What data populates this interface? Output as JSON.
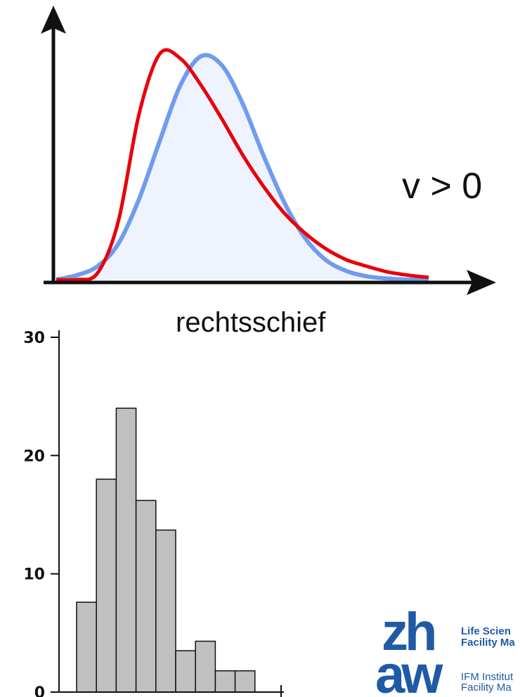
{
  "chart_data": [
    {
      "type": "line",
      "title": "",
      "annotation": "v > 0",
      "caption": "rechtsschief",
      "xlabel": "",
      "ylabel": "",
      "xlim": [
        0,
        10
      ],
      "ylim": [
        0,
        1.1
      ],
      "grid": false,
      "series": [
        {
          "color": "#6f9cf0",
          "fill": "#eef3fd",
          "x": [
            0,
            0.5,
            1,
            1.5,
            2,
            2.5,
            3,
            3.5,
            4,
            4.5,
            5,
            5.5,
            6,
            6.5,
            7,
            7.5,
            8,
            8.5,
            9
          ],
          "y": [
            0.0,
            0.02,
            0.06,
            0.16,
            0.36,
            0.62,
            0.87,
            1.0,
            0.96,
            0.79,
            0.56,
            0.35,
            0.19,
            0.09,
            0.04,
            0.015,
            0.005,
            0.0,
            0.0
          ]
        },
        {
          "color": "#e8000b",
          "x": [
            0,
            0.5,
            1,
            1.5,
            2,
            2.5,
            3,
            3.5,
            4,
            4.5,
            5,
            5.5,
            6,
            6.5,
            7,
            7.5,
            8,
            8.5,
            9
          ],
          "y": [
            0.0,
            0.0,
            0.03,
            0.26,
            0.74,
            1.01,
            0.99,
            0.87,
            0.72,
            0.56,
            0.42,
            0.3,
            0.21,
            0.14,
            0.09,
            0.06,
            0.035,
            0.02,
            0.01
          ]
        }
      ]
    },
    {
      "type": "bar",
      "title": "",
      "xlabel": "",
      "ylabel": "",
      "ylim": [
        0,
        30
      ],
      "yticks": [
        0,
        10,
        20,
        30
      ],
      "ytick_labels": [
        "0",
        "10",
        "20",
        "30"
      ],
      "grid": false,
      "bar_color": "#c0c0c0",
      "values": [
        7.6,
        18,
        24,
        16.2,
        13.7,
        3.5,
        4.3,
        1.8,
        1.8
      ]
    }
  ],
  "logo": {
    "mark_top": "zh",
    "mark_bottom": "aw",
    "line1": "Life Scien",
    "line2": "Facility Ma",
    "line3": "IFM Institut",
    "line4": "Facility Ma"
  },
  "colors": {
    "axis": "#111111",
    "logo_blue": "#1f5aa6"
  }
}
